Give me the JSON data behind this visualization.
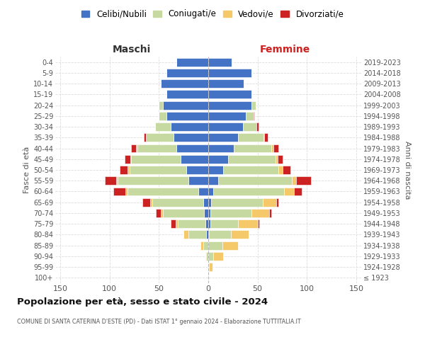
{
  "age_groups": [
    "100+",
    "95-99",
    "90-94",
    "85-89",
    "80-84",
    "75-79",
    "70-74",
    "65-69",
    "60-64",
    "55-59",
    "50-54",
    "45-49",
    "40-44",
    "35-39",
    "30-34",
    "25-29",
    "20-24",
    "15-19",
    "10-14",
    "5-9",
    "0-4"
  ],
  "birth_years": [
    "≤ 1923",
    "1924-1928",
    "1929-1933",
    "1934-1938",
    "1939-1943",
    "1944-1948",
    "1949-1953",
    "1954-1958",
    "1959-1963",
    "1964-1968",
    "1969-1973",
    "1974-1978",
    "1979-1983",
    "1984-1988",
    "1989-1993",
    "1994-1998",
    "1999-2003",
    "2004-2008",
    "2009-2013",
    "2014-2018",
    "2019-2023"
  ],
  "maschi": {
    "celibi": [
      0,
      0,
      0,
      0,
      2,
      3,
      4,
      5,
      10,
      20,
      22,
      28,
      32,
      35,
      38,
      42,
      46,
      42,
      48,
      42,
      32
    ],
    "coniugati": [
      0,
      0,
      2,
      5,
      18,
      28,
      42,
      52,
      72,
      72,
      58,
      50,
      40,
      28,
      16,
      8,
      4,
      0,
      0,
      0,
      0
    ],
    "vedovi": [
      0,
      0,
      1,
      3,
      5,
      2,
      2,
      2,
      2,
      1,
      2,
      1,
      1,
      0,
      0,
      0,
      0,
      0,
      0,
      0,
      0
    ],
    "divorziati": [
      0,
      0,
      0,
      0,
      0,
      5,
      5,
      8,
      12,
      12,
      8,
      6,
      5,
      2,
      0,
      0,
      0,
      0,
      0,
      0,
      0
    ]
  },
  "femmine": {
    "nubili": [
      0,
      0,
      0,
      0,
      1,
      2,
      2,
      3,
      5,
      10,
      15,
      20,
      26,
      30,
      35,
      38,
      44,
      44,
      36,
      44,
      24
    ],
    "coniugate": [
      0,
      1,
      5,
      14,
      22,
      28,
      42,
      52,
      72,
      75,
      56,
      48,
      38,
      26,
      14,
      8,
      4,
      0,
      0,
      0,
      0
    ],
    "vedove": [
      0,
      3,
      10,
      16,
      18,
      20,
      18,
      14,
      10,
      4,
      4,
      2,
      2,
      1,
      0,
      0,
      0,
      0,
      0,
      0,
      0
    ],
    "divorziate": [
      0,
      0,
      0,
      0,
      0,
      2,
      2,
      2,
      8,
      15,
      8,
      5,
      5,
      3,
      2,
      1,
      0,
      0,
      0,
      0,
      0
    ]
  },
  "colors": {
    "celibi": "#4472c4",
    "coniugati": "#c5d9a0",
    "vedovi": "#f5c96a",
    "divorziati": "#cc2222"
  },
  "xlim": 155,
  "title": "Popolazione per età, sesso e stato civile - 2024",
  "subtitle": "COMUNE DI SANTA CATERINA D'ESTE (PD) - Dati ISTAT 1° gennaio 2024 - Elaborazione TUTTITALIA.IT",
  "xlabel_left": "Maschi",
  "xlabel_right": "Femmine",
  "ylabel_left": "Fasce di età",
  "ylabel_right": "Anni di nascita",
  "legend_labels": [
    "Celibi/Nubili",
    "Coniugati/e",
    "Vedovi/e",
    "Divorziati/e"
  ],
  "bg_color": "#ffffff",
  "grid_color": "#dddddd"
}
